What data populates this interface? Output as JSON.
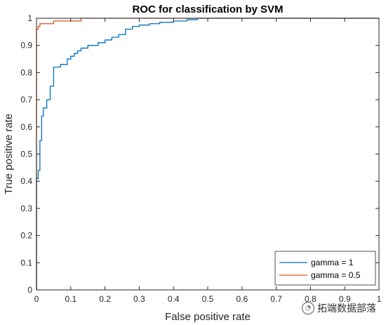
{
  "chart_data": {
    "type": "line",
    "title": "ROC for classification by SVM",
    "xlabel": "False positive rate",
    "ylabel": "True positive rate",
    "xlim": [
      0,
      1
    ],
    "ylim": [
      0,
      1
    ],
    "xticks": [
      "0",
      "0.1",
      "0.2",
      "0.3",
      "0.4",
      "0.5",
      "0.6",
      "0.7",
      "0.8",
      "0.9",
      "1"
    ],
    "yticks": [
      "0",
      "0.1",
      "0.2",
      "0.3",
      "0.4",
      "0.5",
      "0.6",
      "0.7",
      "0.8",
      "0.9",
      "1"
    ],
    "grid": false,
    "legend_position": "bottom-right",
    "series": [
      {
        "name": "gamma = 1",
        "color": "#0072BD",
        "x": [
          0,
          0,
          0.005,
          0.005,
          0.01,
          0.01,
          0.015,
          0.015,
          0.02,
          0.02,
          0.03,
          0.03,
          0.04,
          0.04,
          0.05,
          0.05,
          0.07,
          0.07,
          0.09,
          0.09,
          0.1,
          0.1,
          0.11,
          0.11,
          0.12,
          0.12,
          0.13,
          0.13,
          0.15,
          0.15,
          0.18,
          0.18,
          0.2,
          0.2,
          0.22,
          0.22,
          0.24,
          0.24,
          0.26,
          0.26,
          0.28,
          0.28,
          0.3,
          0.3,
          0.33,
          0.33,
          0.36,
          0.36,
          0.4,
          0.4,
          0.44,
          0.44,
          0.47,
          0.47,
          1
        ],
        "y": [
          0,
          0.41,
          0.41,
          0.44,
          0.44,
          0.55,
          0.55,
          0.64,
          0.64,
          0.67,
          0.67,
          0.7,
          0.7,
          0.75,
          0.75,
          0.82,
          0.82,
          0.83,
          0.83,
          0.85,
          0.85,
          0.86,
          0.86,
          0.87,
          0.87,
          0.88,
          0.88,
          0.89,
          0.89,
          0.9,
          0.9,
          0.91,
          0.91,
          0.92,
          0.92,
          0.93,
          0.93,
          0.94,
          0.94,
          0.96,
          0.96,
          0.97,
          0.97,
          0.975,
          0.975,
          0.98,
          0.98,
          0.985,
          0.985,
          0.99,
          0.99,
          0.995,
          0.995,
          1,
          1
        ]
      },
      {
        "name": "gamma = 0.5",
        "color": "#D95319",
        "x": [
          0,
          0,
          0.005,
          0.005,
          0.01,
          0.01,
          0.05,
          0.05,
          0.13,
          0.13,
          1
        ],
        "y": [
          0,
          0.96,
          0.96,
          0.97,
          0.97,
          0.98,
          0.98,
          0.99,
          0.99,
          1,
          1
        ]
      }
    ]
  },
  "watermark": {
    "icon": "wechat-icon",
    "text": "拓端数据部落"
  }
}
